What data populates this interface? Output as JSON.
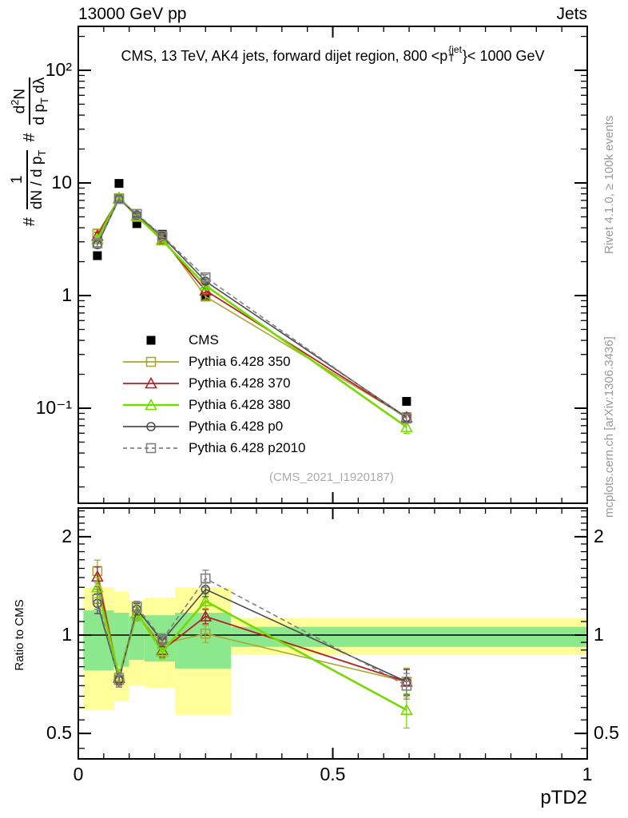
{
  "header": {
    "left": "13000 GeV pp",
    "right": "Jets"
  },
  "title": {
    "pre": "CMS, 13 TeV, AK4 jets, forward dijet region, 800 <p",
    "sup": "{jet",
    "sub": "T",
    "post": "}< 1000 GeV"
  },
  "ylabel": {
    "hash1": "#",
    "num1": "1",
    "den1_pre": "dN / d p",
    "den1_sub": "T",
    "hash2": "#",
    "num2_pre": "d",
    "num2_sup": "2",
    "num2_post": "N",
    "den2_pre": "d p",
    "den2_sub": "T",
    "den2_post": " dλ"
  },
  "ratio_axis_title": "Ratio to CMS",
  "watermark": "(CMS_2021_I1920187)",
  "side_notes": {
    "rivet": "Rivet 4.1.0, ≥ 100k events",
    "mcplots": "mcplots.cern.ch [arXiv:1306.3436]"
  },
  "legend": {
    "items": [
      {
        "label": "CMS",
        "marker": "square-filled",
        "color": "#000000",
        "line": false,
        "dash": false
      },
      {
        "label": "Pythia 6.428 350",
        "marker": "square-open",
        "color": "#a8a832",
        "line": true,
        "dash": false
      },
      {
        "label": "Pythia 6.428 370",
        "marker": "triangle-open",
        "color": "#b52025",
        "line": true,
        "dash": false
      },
      {
        "label": "Pythia 6.428 380",
        "marker": "triangle-open",
        "color": "#76d900",
        "line": true,
        "dash": false
      },
      {
        "label": "Pythia 6.428 p0",
        "marker": "circle-open",
        "color": "#4d4d4d",
        "line": true,
        "dash": false
      },
      {
        "label": "Pythia 6.428 p2010",
        "marker": "square-open",
        "color": "#808080",
        "line": true,
        "dash": true
      }
    ]
  },
  "chart_data": {
    "type": "line",
    "title": "CMS, 13 TeV, AK4 jets, forward dijet region, 800 < pT{jet} < 1000 GeV",
    "xlabel": "pTD2",
    "ylabel": "# 1/(dN/dpT) # d2N/(dpT dlambda)",
    "x": [
      0.0375,
      0.08,
      0.115,
      0.165,
      0.25,
      0.645
    ],
    "series": [
      {
        "name": "CMS",
        "color": "#000000",
        "marker": "square-filled",
        "line": false,
        "dash": false,
        "values": [
          2.26,
          9.9,
          4.35,
          3.5,
          0.97,
          0.115
        ],
        "ratio": [
          1,
          1,
          1,
          1,
          1,
          1
        ],
        "err": [
          0,
          0,
          0,
          0,
          0,
          0
        ],
        "width": 0
      },
      {
        "name": "Pythia 6.428 350",
        "color": "#a8a832",
        "marker": "square-open",
        "line": true,
        "dash": false,
        "values": [
          3.55,
          7.3,
          5.0,
          3.3,
          0.98,
          0.083
        ],
        "ratio": [
          1.57,
          0.74,
          1.15,
          0.94,
          1.01,
          0.72
        ],
        "err": [
          0.08,
          0.05,
          0.04,
          0.05,
          0.06,
          0.1
        ],
        "width": 1.6
      },
      {
        "name": "Pythia 6.428 370",
        "color": "#b52025",
        "marker": "triangle-open",
        "line": true,
        "dash": false,
        "values": [
          3.4,
          7.3,
          5.1,
          3.15,
          1.11,
          0.083
        ],
        "ratio": [
          1.51,
          0.74,
          1.17,
          0.9,
          1.14,
          0.72
        ],
        "err": [
          0.07,
          0.05,
          0.04,
          0.05,
          0.05,
          0.09
        ],
        "width": 1.8
      },
      {
        "name": "Pythia 6.428 380",
        "color": "#76d900",
        "marker": "triangle-open",
        "line": true,
        "dash": false,
        "values": [
          3.16,
          7.4,
          5.1,
          3.1,
          1.23,
          0.068
        ],
        "ratio": [
          1.4,
          0.75,
          1.17,
          0.89,
          1.27,
          0.59
        ],
        "err": [
          0.07,
          0.05,
          0.04,
          0.05,
          0.05,
          0.12
        ],
        "width": 2.6
      },
      {
        "name": "Pythia 6.428 p0",
        "color": "#4d4d4d",
        "marker": "circle-open",
        "line": true,
        "dash": false,
        "values": [
          2.83,
          7.2,
          5.2,
          3.36,
          1.34,
          0.083
        ],
        "ratio": [
          1.25,
          0.73,
          1.2,
          0.96,
          1.38,
          0.72
        ],
        "err": [
          0.07,
          0.05,
          0.04,
          0.04,
          0.05,
          0.09
        ],
        "width": 1.6
      },
      {
        "name": "Pythia 6.428 p2010",
        "color": "#808080",
        "marker": "square-open",
        "line": true,
        "dash": true,
        "values": [
          2.92,
          7.2,
          5.3,
          3.4,
          1.45,
          0.081
        ],
        "ratio": [
          1.29,
          0.73,
          1.22,
          0.97,
          1.49,
          0.7
        ],
        "err": [
          0.07,
          0.05,
          0.04,
          0.04,
          0.06,
          0.09
        ],
        "width": 1.6
      }
    ],
    "ratio_bands": {
      "edges": [
        0.01,
        0.07,
        0.1,
        0.13,
        0.19,
        0.3,
        1.0
      ],
      "yellow": [
        [
          0.59,
          1.4
        ],
        [
          0.63,
          1.36
        ],
        [
          0.7,
          1.28
        ],
        [
          0.69,
          1.3
        ],
        [
          0.57,
          1.4
        ],
        [
          0.87,
          1.13
        ]
      ],
      "green": [
        [
          0.78,
          1.19
        ],
        [
          0.8,
          1.17
        ],
        [
          0.84,
          1.14
        ],
        [
          0.83,
          1.15
        ],
        [
          0.79,
          1.17
        ],
        [
          0.92,
          1.06
        ]
      ],
      "yellow_color": "#ffff99",
      "green_color": "#8ce88c"
    },
    "axes": {
      "x": {
        "min": 0,
        "max": 1,
        "major": [
          0,
          0.5,
          1
        ],
        "labels": [
          "0",
          "0.5",
          "1"
        ],
        "minor_step": 0.05,
        "title": "pTD2"
      },
      "y_main": {
        "scale": "log",
        "major": [
          100,
          10,
          1,
          0.1
        ],
        "labels": [
          "10²",
          "10",
          "1",
          "10⁻¹"
        ]
      },
      "y_ratio": {
        "scale": "log",
        "major": [
          2,
          1,
          0.5
        ],
        "labels": [
          "2",
          "1",
          "0.5"
        ],
        "minor": [
          0.45,
          0.55,
          0.6,
          0.65,
          0.7,
          0.75,
          0.8,
          0.85,
          0.9,
          0.95,
          1.1,
          1.2,
          1.3,
          1.4,
          1.5,
          1.6,
          1.7,
          1.8,
          1.9,
          2.1,
          2.2,
          2.3,
          2.4
        ]
      }
    }
  }
}
